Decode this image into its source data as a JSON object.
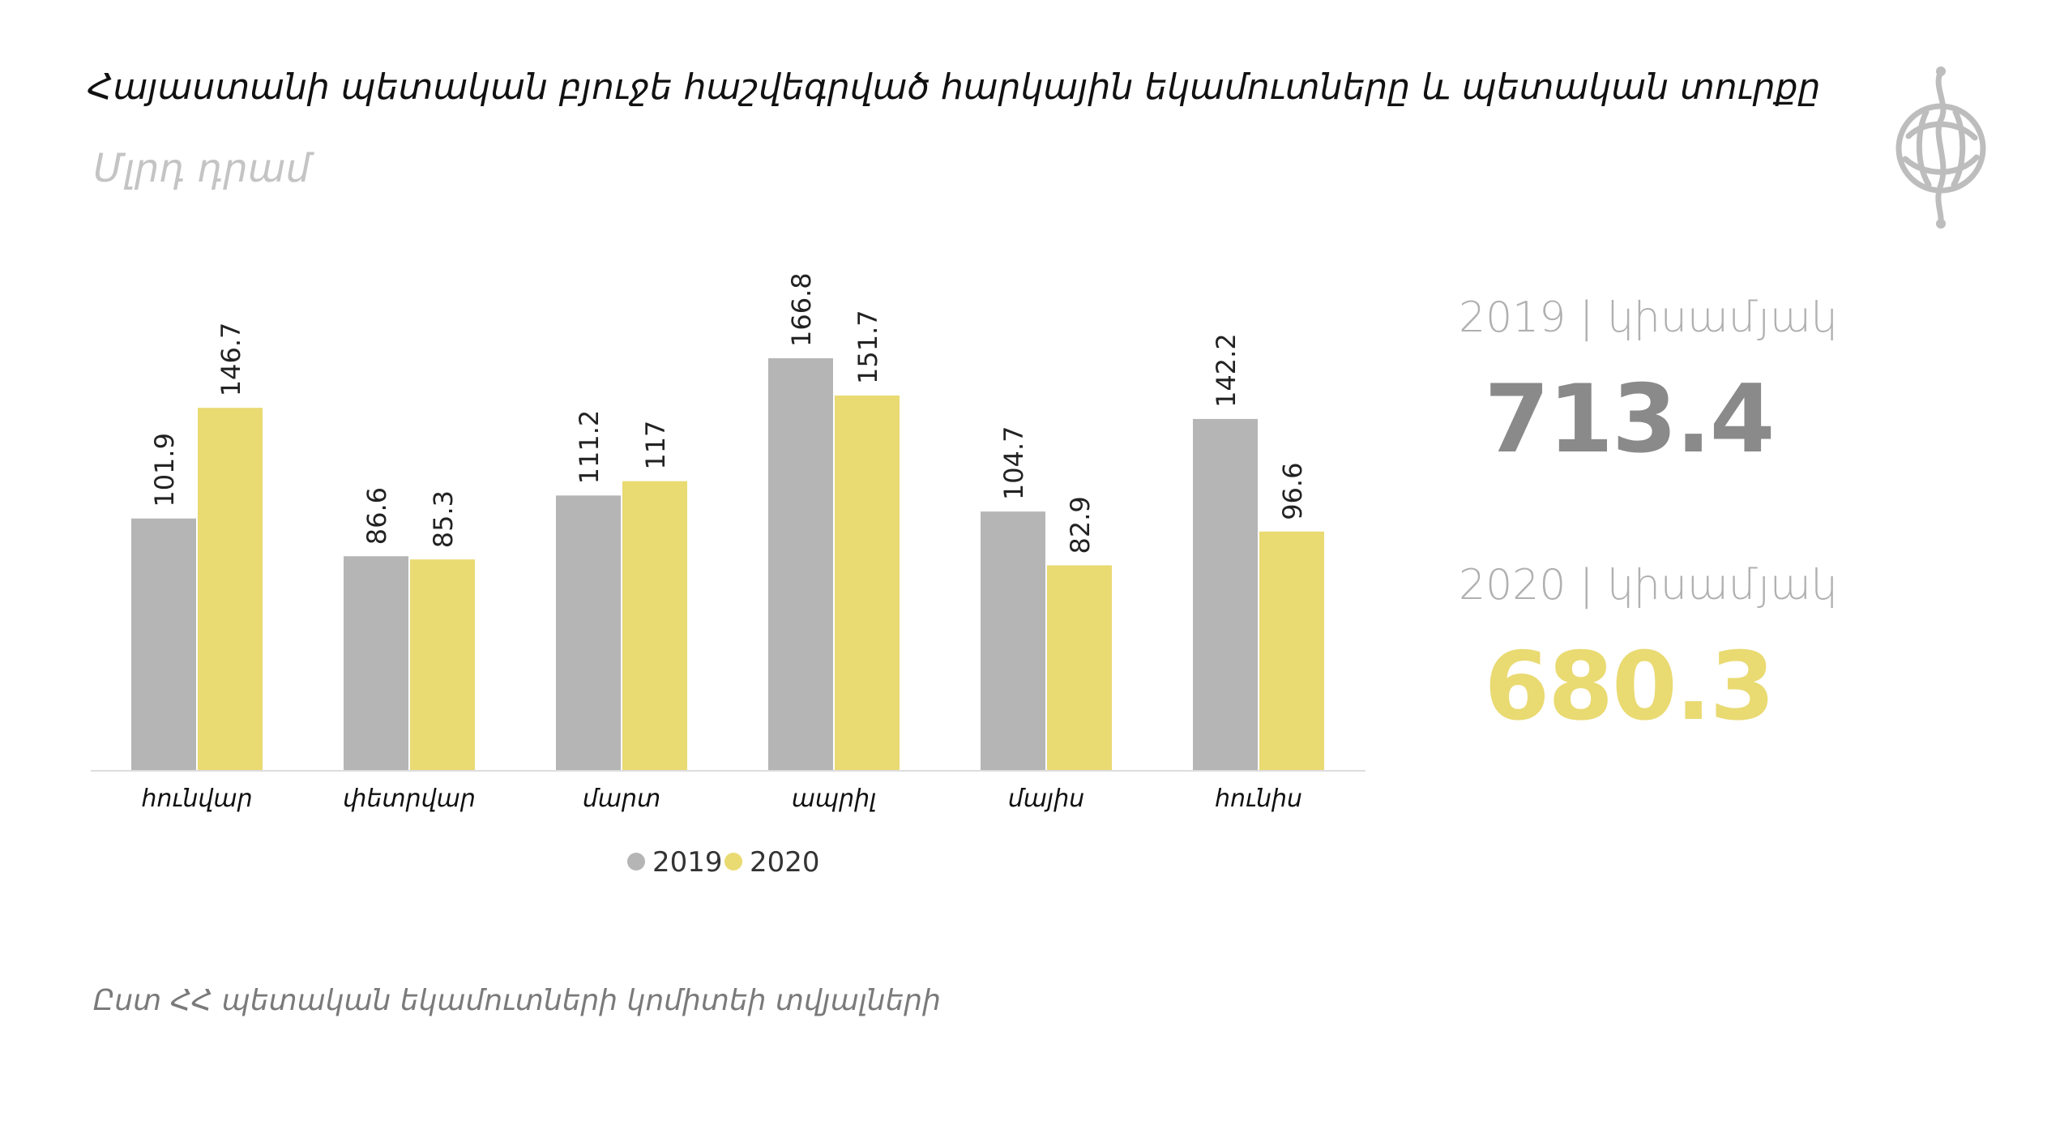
{
  "header": {
    "title": "Հայաստանի պետական բյուջե հաշվեգրված հարկային եկամուտները  և պետական տուրքը",
    "subtitle": "Մլրդ դրամ"
  },
  "chart_data": {
    "type": "bar",
    "categories": [
      "հունվար",
      "փետրվար",
      "մարտ",
      "ապրիլ",
      "մայիս",
      "հունիս"
    ],
    "series": [
      {
        "name": "2019",
        "values": [
          101.9,
          86.6,
          111.2,
          166.8,
          104.7,
          142.2
        ],
        "color": "#b5b5b5"
      },
      {
        "name": "2020",
        "values": [
          146.7,
          85.3,
          117,
          151.7,
          82.9,
          96.6
        ],
        "color": "#e9da72"
      }
    ],
    "ylim": [
      0,
      166.8
    ],
    "grid": false,
    "legend_position": "bottom",
    "data_labels": [
      "101.9",
      "146.7",
      "86.6",
      "85.3",
      "111.2",
      "117",
      "166.8",
      "151.7",
      "104.7",
      "82.9",
      "142.2",
      "96.6"
    ]
  },
  "summary": {
    "items": [
      {
        "label": "2019 | կիսամյակ",
        "value": "713.4",
        "label_color": "#b0b0b0",
        "value_color": "#8a8a8a"
      },
      {
        "label": "2020 | կիսամյակ",
        "value": "680.3",
        "label_color": "#b0b0b0",
        "value_color": "#e9da72"
      }
    ]
  },
  "footer": {
    "source": "Ըստ ՀՀ պետական եկամուտների կոմիտեի տվյալների"
  },
  "logo": {
    "icon": "circular-emblem-icon",
    "color": "#bdbdbd"
  },
  "colors": {
    "axis": "#dddddd",
    "text": "#111111",
    "label": "#222222"
  }
}
